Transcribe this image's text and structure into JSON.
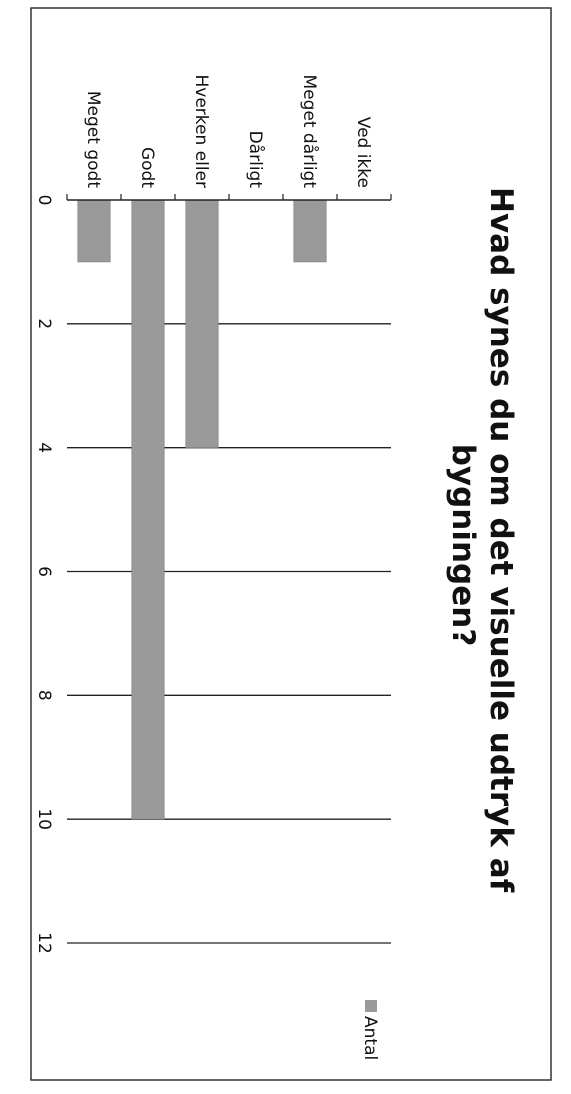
{
  "chart_data": {
    "type": "bar",
    "orientation": "horizontal",
    "title": "Hvad synes du om det visuelle udtryk af bygningen?",
    "categories": [
      "Ved ikke",
      "Meget dårligt",
      "Dårligt",
      "Hverken eller",
      "Godt",
      "Meget godt"
    ],
    "series": [
      {
        "name": "Antal",
        "values": [
          0,
          1,
          0,
          4,
          10,
          1
        ]
      }
    ],
    "xlim": [
      0,
      12
    ],
    "ticks": [
      0,
      2,
      4,
      6,
      8,
      10,
      12
    ],
    "grid": true,
    "legend": "right",
    "colors": {
      "bar": "#9a9a9a",
      "grid": "#222222",
      "border": "#333333"
    }
  }
}
